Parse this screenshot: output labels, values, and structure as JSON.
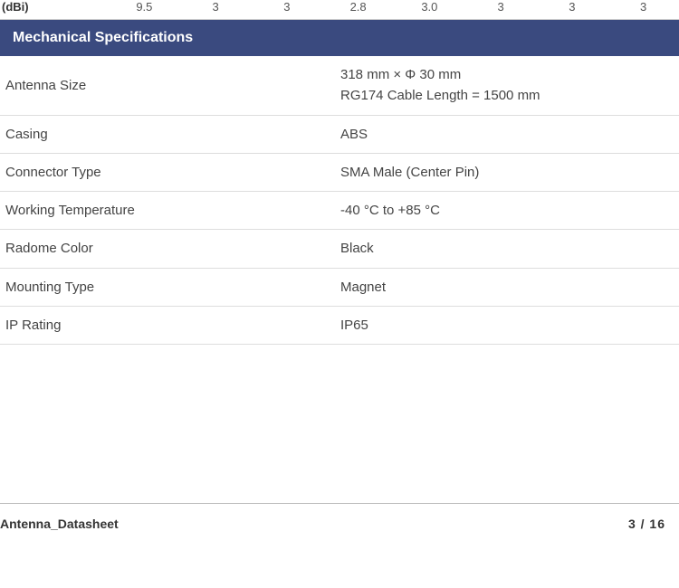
{
  "partial_header": {
    "label": "(dBi)",
    "cells": [
      "9.5",
      "3",
      "3",
      "2.8",
      "3.0",
      "3",
      "3",
      "3"
    ]
  },
  "section": {
    "title": "Mechanical Specifications",
    "header_bg": "#3a4a7f",
    "header_fg": "#ffffff",
    "rows": [
      {
        "label": "Antenna Size",
        "value": "318 mm × Φ 30 mm\nRG174 Cable Length = 1500 mm"
      },
      {
        "label": "Casing",
        "value": "ABS"
      },
      {
        "label": "Connector Type",
        "value": "SMA Male (Center Pin)"
      },
      {
        "label": "Working Temperature",
        "value": "-40 °C to +85 °C"
      },
      {
        "label": "Radome Color",
        "value": "Black"
      },
      {
        "label": "Mounting Type",
        "value": "Magnet"
      },
      {
        "label": "IP Rating",
        "value": "IP65"
      }
    ]
  },
  "footer": {
    "doc_name": "Antenna_Datasheet",
    "page_current": "3",
    "page_sep": " / ",
    "page_total": "16"
  }
}
